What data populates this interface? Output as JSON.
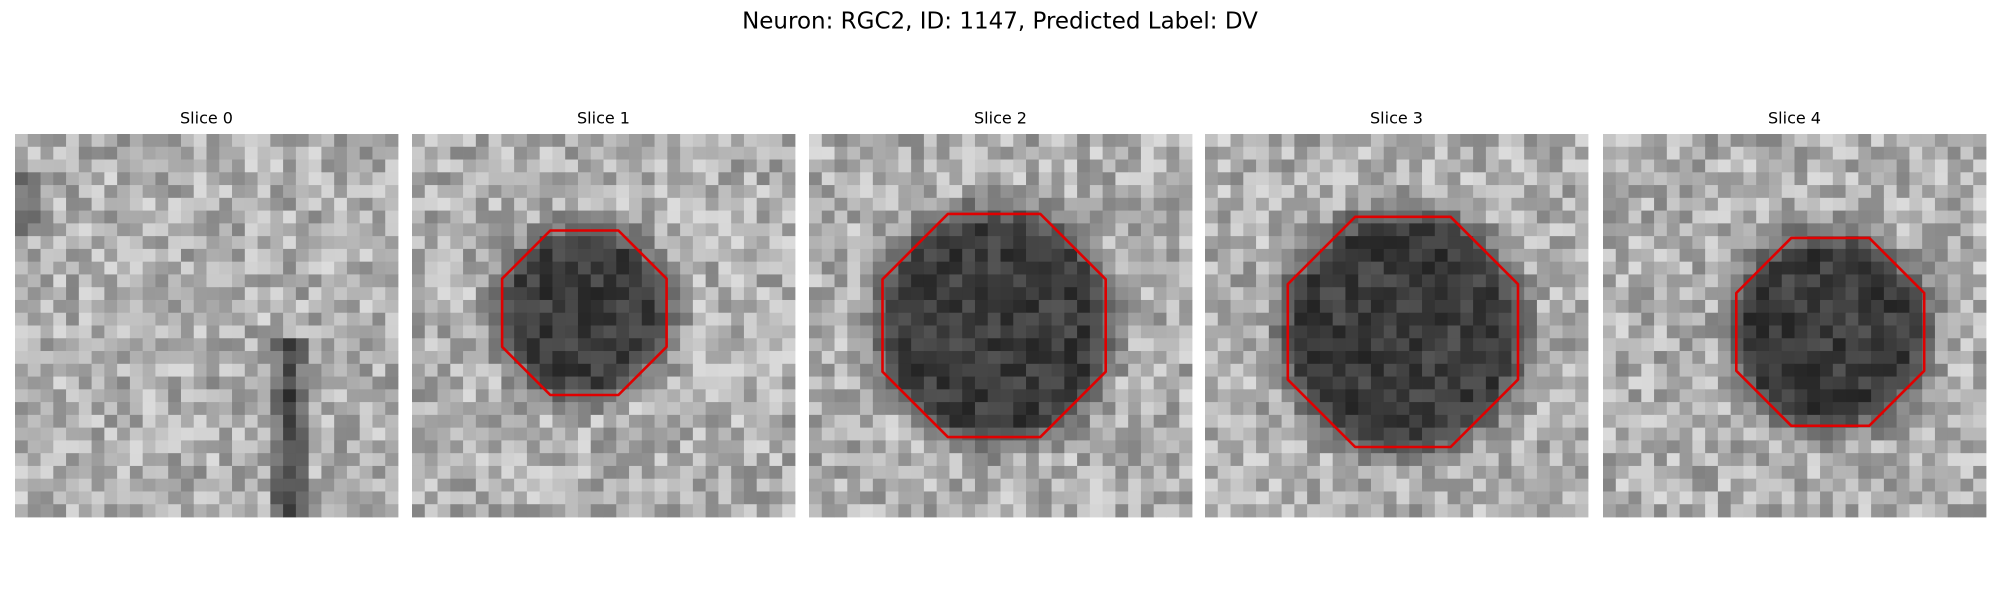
{
  "title": "Neuron: RGC2, ID: 1147, Predicted Label: DV",
  "panels": [
    {
      "title": "Slice 0"
    },
    {
      "title": "Slice 1"
    },
    {
      "title": "Slice 2"
    },
    {
      "title": "Slice 3"
    },
    {
      "title": "Slice 4"
    }
  ]
}
